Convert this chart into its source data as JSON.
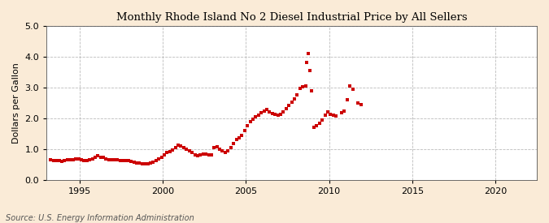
{
  "title": "Monthly Rhode Island No 2 Diesel Industrial Price by All Sellers",
  "ylabel": "Dollars per Gallon",
  "source": "Source: U.S. Energy Information Administration",
  "xlim": [
    1993.0,
    2022.5
  ],
  "ylim": [
    0.0,
    5.0
  ],
  "xticks": [
    1995,
    2000,
    2005,
    2010,
    2015,
    2020
  ],
  "yticks": [
    0.0,
    1.0,
    2.0,
    3.0,
    4.0,
    5.0
  ],
  "marker_color": "#cc0000",
  "marker_size": 10,
  "background_color": "#faebd7",
  "plot_bg_color": "#ffffff",
  "data": [
    [
      1993.25,
      0.65
    ],
    [
      1993.42,
      0.63
    ],
    [
      1993.58,
      0.62
    ],
    [
      1993.75,
      0.62
    ],
    [
      1993.92,
      0.61
    ],
    [
      1994.08,
      0.63
    ],
    [
      1994.25,
      0.65
    ],
    [
      1994.42,
      0.65
    ],
    [
      1994.58,
      0.65
    ],
    [
      1994.75,
      0.67
    ],
    [
      1994.92,
      0.68
    ],
    [
      1995.08,
      0.65
    ],
    [
      1995.25,
      0.63
    ],
    [
      1995.42,
      0.63
    ],
    [
      1995.58,
      0.64
    ],
    [
      1995.75,
      0.68
    ],
    [
      1995.92,
      0.72
    ],
    [
      1996.08,
      0.77
    ],
    [
      1996.25,
      0.73
    ],
    [
      1996.42,
      0.72
    ],
    [
      1996.58,
      0.68
    ],
    [
      1996.75,
      0.65
    ],
    [
      1996.92,
      0.65
    ],
    [
      1997.08,
      0.65
    ],
    [
      1997.25,
      0.64
    ],
    [
      1997.42,
      0.63
    ],
    [
      1997.58,
      0.62
    ],
    [
      1997.75,
      0.63
    ],
    [
      1997.92,
      0.62
    ],
    [
      1998.08,
      0.6
    ],
    [
      1998.25,
      0.57
    ],
    [
      1998.42,
      0.55
    ],
    [
      1998.58,
      0.54
    ],
    [
      1998.75,
      0.53
    ],
    [
      1998.92,
      0.52
    ],
    [
      1999.08,
      0.52
    ],
    [
      1999.25,
      0.55
    ],
    [
      1999.42,
      0.58
    ],
    [
      1999.58,
      0.62
    ],
    [
      1999.75,
      0.67
    ],
    [
      1999.92,
      0.72
    ],
    [
      2000.08,
      0.8
    ],
    [
      2000.25,
      0.88
    ],
    [
      2000.42,
      0.92
    ],
    [
      2000.58,
      0.98
    ],
    [
      2000.75,
      1.05
    ],
    [
      2000.92,
      1.12
    ],
    [
      2001.08,
      1.1
    ],
    [
      2001.25,
      1.05
    ],
    [
      2001.42,
      1.0
    ],
    [
      2001.58,
      0.95
    ],
    [
      2001.75,
      0.9
    ],
    [
      2001.92,
      0.82
    ],
    [
      2002.08,
      0.78
    ],
    [
      2002.25,
      0.8
    ],
    [
      2002.42,
      0.83
    ],
    [
      2002.58,
      0.83
    ],
    [
      2002.75,
      0.82
    ],
    [
      2002.92,
      0.8
    ],
    [
      2003.08,
      1.05
    ],
    [
      2003.25,
      1.08
    ],
    [
      2003.42,
      1.0
    ],
    [
      2003.58,
      0.93
    ],
    [
      2003.75,
      0.9
    ],
    [
      2003.92,
      0.95
    ],
    [
      2004.08,
      1.05
    ],
    [
      2004.25,
      1.18
    ],
    [
      2004.42,
      1.3
    ],
    [
      2004.58,
      1.35
    ],
    [
      2004.75,
      1.45
    ],
    [
      2004.92,
      1.6
    ],
    [
      2005.08,
      1.75
    ],
    [
      2005.25,
      1.88
    ],
    [
      2005.42,
      1.98
    ],
    [
      2005.58,
      2.05
    ],
    [
      2005.75,
      2.1
    ],
    [
      2005.92,
      2.18
    ],
    [
      2006.08,
      2.22
    ],
    [
      2006.25,
      2.28
    ],
    [
      2006.42,
      2.2
    ],
    [
      2006.58,
      2.15
    ],
    [
      2006.75,
      2.12
    ],
    [
      2006.92,
      2.1
    ],
    [
      2007.08,
      2.12
    ],
    [
      2007.25,
      2.2
    ],
    [
      2007.42,
      2.32
    ],
    [
      2007.58,
      2.42
    ],
    [
      2007.75,
      2.52
    ],
    [
      2007.92,
      2.62
    ],
    [
      2008.08,
      2.75
    ],
    [
      2008.25,
      2.98
    ],
    [
      2008.42,
      3.02
    ],
    [
      2008.58,
      3.05
    ],
    [
      2008.67,
      3.8
    ],
    [
      2008.75,
      4.1
    ],
    [
      2008.83,
      3.55
    ],
    [
      2008.92,
      2.9
    ],
    [
      2009.08,
      1.7
    ],
    [
      2009.25,
      1.75
    ],
    [
      2009.42,
      1.85
    ],
    [
      2009.58,
      1.95
    ],
    [
      2009.75,
      2.1
    ],
    [
      2009.92,
      2.2
    ],
    [
      2010.08,
      2.12
    ],
    [
      2010.25,
      2.1
    ],
    [
      2010.42,
      2.08
    ],
    [
      2010.75,
      2.18
    ],
    [
      2010.92,
      2.22
    ],
    [
      2011.08,
      2.6
    ],
    [
      2011.25,
      3.05
    ],
    [
      2011.42,
      2.95
    ],
    [
      2011.75,
      2.5
    ],
    [
      2011.92,
      2.45
    ]
  ]
}
